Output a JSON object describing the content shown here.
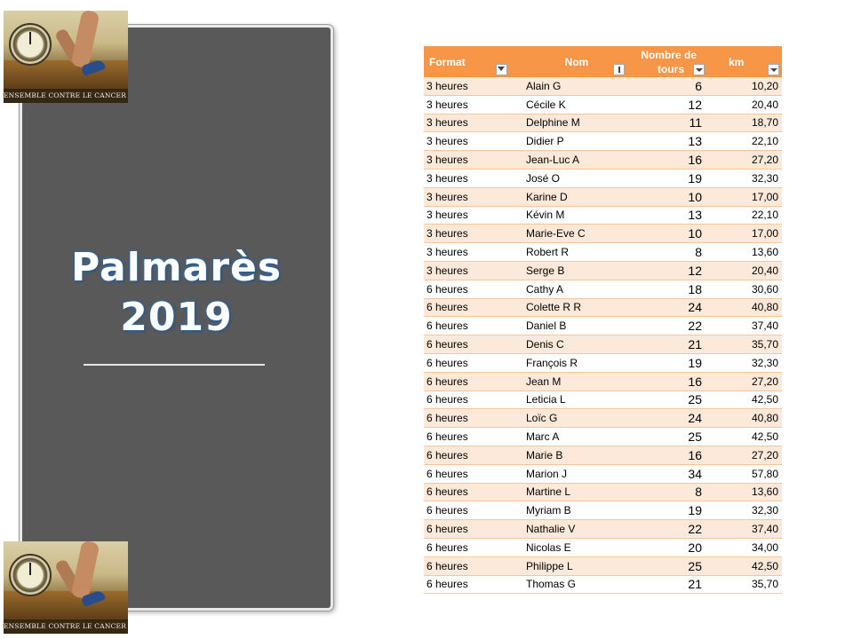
{
  "panel": {
    "title_line1": "Palmarès",
    "title_line2": "2019"
  },
  "logo": {
    "caption": "ENSEMBLE CONTRE LE CANCER DE L'ENFANT"
  },
  "table": {
    "headers": {
      "format": "Format",
      "nom": "Nom",
      "tours_line1": "Nombre de",
      "tours_line2": "tours",
      "km": "km"
    },
    "rows": [
      {
        "format": "3 heures",
        "nom": "Alain G",
        "tours": "6",
        "km": "10,20"
      },
      {
        "format": "3 heures",
        "nom": "Cécile K",
        "tours": "12",
        "km": "20,40"
      },
      {
        "format": "3 heures",
        "nom": "Delphine M",
        "tours": "11",
        "km": "18,70"
      },
      {
        "format": "3 heures",
        "nom": "Didier P",
        "tours": "13",
        "km": "22,10"
      },
      {
        "format": "3 heures",
        "nom": "Jean-Luc A",
        "tours": "16",
        "km": "27,20"
      },
      {
        "format": "3 heures",
        "nom": "José O",
        "tours": "19",
        "km": "32,30"
      },
      {
        "format": "3 heures",
        "nom": "Karine D",
        "tours": "10",
        "km": "17,00"
      },
      {
        "format": "3 heures",
        "nom": "Kévin M",
        "tours": "13",
        "km": "22,10"
      },
      {
        "format": "3 heures",
        "nom": "Marie-Eve C",
        "tours": "10",
        "km": "17,00"
      },
      {
        "format": "3 heures",
        "nom": "Robert R",
        "tours": "8",
        "km": "13,60"
      },
      {
        "format": "3 heures",
        "nom": "Serge B",
        "tours": "12",
        "km": "20,40"
      },
      {
        "format": "6 heures",
        "nom": "Cathy A",
        "tours": "18",
        "km": "30,60"
      },
      {
        "format": "6 heures",
        "nom": "Colette R R",
        "tours": "24",
        "km": "40,80"
      },
      {
        "format": "6 heures",
        "nom": "Daniel B",
        "tours": "22",
        "km": "37,40"
      },
      {
        "format": "6 heures",
        "nom": "Denis C",
        "tours": "21",
        "km": "35,70"
      },
      {
        "format": "6 heures",
        "nom": "François R",
        "tours": "19",
        "km": "32,30"
      },
      {
        "format": "6 heures",
        "nom": "Jean M",
        "tours": "16",
        "km": "27,20"
      },
      {
        "format": "6 heures",
        "nom": "Leticia L",
        "tours": "25",
        "km": "42,50"
      },
      {
        "format": "6 heures",
        "nom": "Loïc G",
        "tours": "24",
        "km": "40,80"
      },
      {
        "format": "6 heures",
        "nom": "Marc A",
        "tours": "25",
        "km": "42,50"
      },
      {
        "format": "6 heures",
        "nom": "Marie B",
        "tours": "16",
        "km": "27,20"
      },
      {
        "format": "6 heures",
        "nom": "Marion J",
        "tours": "34",
        "km": "57,80"
      },
      {
        "format": "6 heures",
        "nom": "Martine L",
        "tours": "8",
        "km": "13,60"
      },
      {
        "format": "6 heures",
        "nom": "Myriam B",
        "tours": "19",
        "km": "32,30"
      },
      {
        "format": "6 heures",
        "nom": "Nathalie V",
        "tours": "22",
        "km": "37,40"
      },
      {
        "format": "6 heures",
        "nom": "Nicolas E",
        "tours": "20",
        "km": "34,00"
      },
      {
        "format": "6 heures",
        "nom": "Philippe L",
        "tours": "25",
        "km": "42,50"
      },
      {
        "format": "6 heures",
        "nom": "Thomas G",
        "tours": "21",
        "km": "35,70"
      }
    ]
  },
  "colors": {
    "header_bg": "#f79646",
    "band_bg": "#fde9d9",
    "panel_bg": "#595959"
  }
}
